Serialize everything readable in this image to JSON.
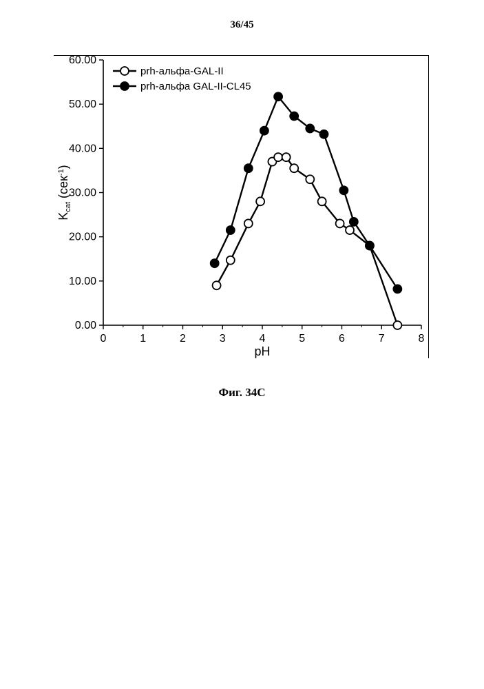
{
  "page": {
    "header": "36/45",
    "caption": "Фиг. 34C"
  },
  "chart": {
    "type": "line",
    "background_color": "#ffffff",
    "axis_color": "#000000",
    "line_width": 2.4,
    "marker_size": 6,
    "x_axis": {
      "label": "pH",
      "min": 0,
      "max": 8,
      "tick_step": 1,
      "minor_ticks_on_axis": true
    },
    "y_axis": {
      "label": "K_cat (сек^-1)",
      "label_html": "K<tspan font-size='10' dy='3'>cat</tspan><tspan dy='-3'> (сек</tspan><tspan font-size='10' dy='-6'>-1</tspan><tspan dy='6'>)</tspan>",
      "min": 0,
      "max": 60,
      "tick_step": 10,
      "tick_format_decimals": 2
    },
    "legend": {
      "position": "top-left",
      "box": false,
      "items": [
        {
          "label": "prh-альфа-GAL-II",
          "marker": "open-circle",
          "color": "#000000",
          "fill": "#ffffff"
        },
        {
          "label": "prh-альфа GAL-II-CL45",
          "marker": "filled-circle",
          "color": "#000000",
          "fill": "#000000"
        }
      ]
    },
    "series": [
      {
        "name": "prh-альфа-GAL-II",
        "marker": "open-circle",
        "line_color": "#000000",
        "marker_stroke": "#000000",
        "marker_fill": "#ffffff",
        "points": [
          {
            "x": 2.85,
            "y": 9.0
          },
          {
            "x": 3.2,
            "y": 14.7
          },
          {
            "x": 3.65,
            "y": 23.0
          },
          {
            "x": 3.95,
            "y": 28.0
          },
          {
            "x": 4.25,
            "y": 37.0
          },
          {
            "x": 4.4,
            "y": 38.0
          },
          {
            "x": 4.6,
            "y": 38.0
          },
          {
            "x": 4.8,
            "y": 35.5
          },
          {
            "x": 5.2,
            "y": 33.0
          },
          {
            "x": 5.5,
            "y": 28.0
          },
          {
            "x": 5.95,
            "y": 23.0
          },
          {
            "x": 6.2,
            "y": 21.5
          },
          {
            "x": 6.7,
            "y": 18.0
          },
          {
            "x": 7.4,
            "y": 0.0
          }
        ]
      },
      {
        "name": "prh-альфа GAL-II-CL45",
        "marker": "filled-circle",
        "line_color": "#000000",
        "marker_stroke": "#000000",
        "marker_fill": "#000000",
        "points": [
          {
            "x": 2.8,
            "y": 14.0
          },
          {
            "x": 3.2,
            "y": 21.5
          },
          {
            "x": 3.65,
            "y": 35.5
          },
          {
            "x": 4.05,
            "y": 44.0
          },
          {
            "x": 4.4,
            "y": 51.7
          },
          {
            "x": 4.8,
            "y": 47.3
          },
          {
            "x": 5.2,
            "y": 44.5
          },
          {
            "x": 5.55,
            "y": 43.2
          },
          {
            "x": 6.05,
            "y": 30.5
          },
          {
            "x": 6.3,
            "y": 23.4
          },
          {
            "x": 6.7,
            "y": 18.0
          },
          {
            "x": 7.4,
            "y": 8.2
          }
        ]
      }
    ]
  }
}
